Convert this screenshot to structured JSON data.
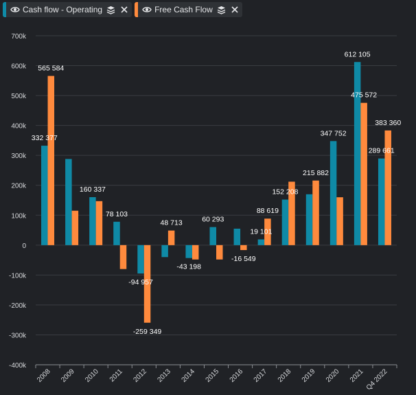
{
  "legend": [
    {
      "label": "Cash flow - Operating",
      "color": "#0f8aa6",
      "visibility_icon": "eye-icon",
      "settings_icon": "layers-icon",
      "close_icon": "close-icon"
    },
    {
      "label": "Free Cash Flow",
      "color": "#ff8a3d",
      "visibility_icon": "eye-icon",
      "settings_icon": "layers-icon",
      "close_icon": "close-icon"
    }
  ],
  "colors": {
    "background": "#202226",
    "grid": "#3a3d42",
    "axis": "#8a8d92",
    "text": "#d7d9dc"
  },
  "chart_data": {
    "type": "bar",
    "categories": [
      "2008",
      "2009",
      "2010",
      "2011",
      "2012",
      "2013",
      "2014",
      "2015",
      "2016",
      "2017",
      "2018",
      "2019",
      "2020",
      "2021",
      "Q4 2022"
    ],
    "series": [
      {
        "name": "Cash flow - Operating",
        "color": "#0f8aa6",
        "values": [
          332377,
          288000,
          160337,
          78103,
          -94957,
          -40000,
          -43198,
          60293,
          55000,
          19101,
          152208,
          170000,
          347752,
          612105,
          289661
        ],
        "labels": [
          "332 377",
          null,
          "160 337",
          "78 103",
          "-94 957",
          null,
          "-43 198",
          "60 293",
          null,
          "19 101",
          "152 208",
          null,
          "347 752",
          "612 105",
          "289 661"
        ]
      },
      {
        "name": "Free Cash Flow",
        "color": "#ff8a3d",
        "values": [
          565584,
          115000,
          147000,
          -80000,
          -259349,
          48713,
          -48000,
          -48000,
          -16549,
          88619,
          212000,
          215882,
          160000,
          475572,
          383360
        ],
        "labels": [
          "565 584",
          null,
          null,
          null,
          "-259 349",
          "48 713",
          null,
          null,
          "-16 549",
          "88 619",
          null,
          "215 882",
          null,
          "475 572",
          "383 360"
        ]
      }
    ],
    "yticks": [
      700000,
      600000,
      500000,
      400000,
      300000,
      200000,
      100000,
      0,
      -100000,
      -200000,
      -300000,
      -400000
    ],
    "ytick_labels": [
      "700k",
      "600k",
      "500k",
      "400k",
      "300k",
      "200k",
      "100k",
      "0",
      "-100k",
      "-200k",
      "-300k",
      "-400k"
    ],
    "ylim": [
      -400000,
      700000
    ],
    "grid": true
  }
}
